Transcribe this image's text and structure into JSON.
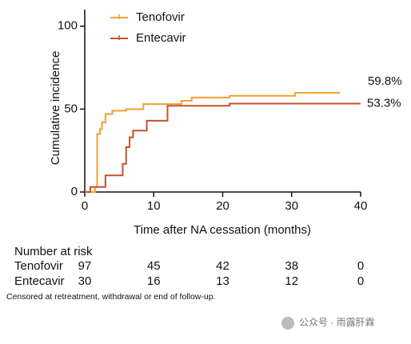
{
  "chart_data": {
    "type": "step",
    "y_label": "Cumulative incidence",
    "x_label": "Time after NA cessation (months)",
    "xlim": [
      0,
      40
    ],
    "xticks": [
      0,
      10,
      20,
      30,
      40
    ],
    "ylim": [
      0,
      110
    ],
    "yticks": [
      0,
      50,
      100
    ],
    "legend": "top-left",
    "series": [
      {
        "name": "Tenofovir",
        "color": "#f0a030",
        "x": [
          0,
          1.5,
          1.8,
          2.2,
          2.5,
          3,
          4,
          6,
          8.5,
          14,
          15.5,
          21,
          30.5,
          37
        ],
        "values": [
          0,
          3,
          35,
          38,
          42,
          47,
          49,
          50,
          53,
          55,
          57,
          58,
          59.8,
          59.8
        ],
        "end_label": "59.8%"
      },
      {
        "name": "Entecavir",
        "color": "#c8502a",
        "x": [
          0,
          0.8,
          3,
          5.5,
          6,
          6.5,
          7,
          9,
          12,
          21,
          40
        ],
        "values": [
          0,
          3,
          10,
          17,
          27,
          33,
          37,
          43,
          52,
          53.3,
          53.3
        ],
        "end_label": "53.3%"
      }
    ]
  },
  "risk_table": {
    "title": "Number at risk",
    "rows": [
      {
        "name": "Tenofovir",
        "counts": [
          "97",
          "45",
          "42",
          "38",
          "0"
        ]
      },
      {
        "name": "Entecavir",
        "counts": [
          "30",
          "16",
          "13",
          "12",
          "0"
        ]
      }
    ]
  },
  "footnote": "Censored at retreatment, withdrawal or end of follow-up.",
  "watermark": "公众号 · 雨露肝霖"
}
